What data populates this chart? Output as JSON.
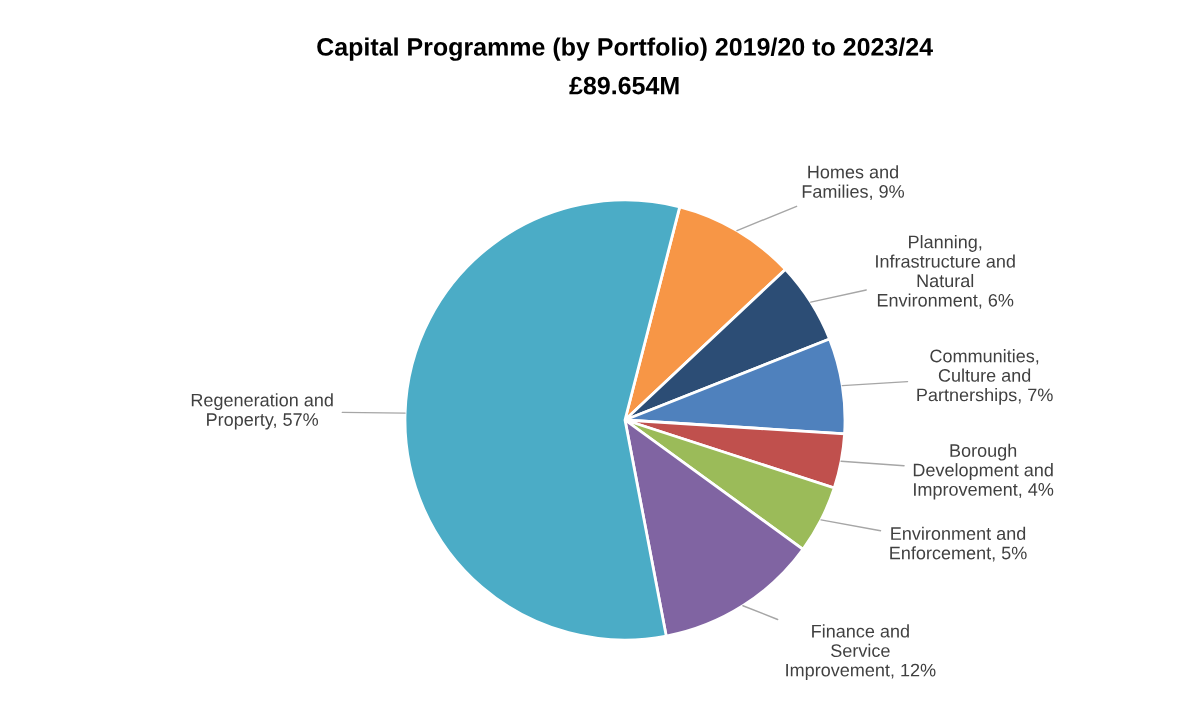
{
  "chart_data": {
    "type": "pie",
    "title": "Capital Programme (by Portfolio) 2019/20 to 2023/24",
    "subtitle": "£89.654M",
    "categories": [
      "Homes and Families",
      "Planning, Infrastructure and Natural Environment",
      "Communities, Culture and Partnerships",
      "Borough Development and Improvement",
      "Environment and Enforcement",
      "Finance and Service Improvement",
      "Regeneration and Property"
    ],
    "values": [
      9,
      6,
      7,
      4,
      5,
      12,
      57
    ],
    "value_labels": [
      "9%",
      "6%",
      "7%",
      "4%",
      "5%",
      "12%",
      "57%"
    ],
    "colors": [
      "#f79646",
      "#2c4d75",
      "#4f81bd",
      "#c0504d",
      "#9bbb59",
      "#8064a2",
      "#4bacc6"
    ],
    "legend": false
  }
}
